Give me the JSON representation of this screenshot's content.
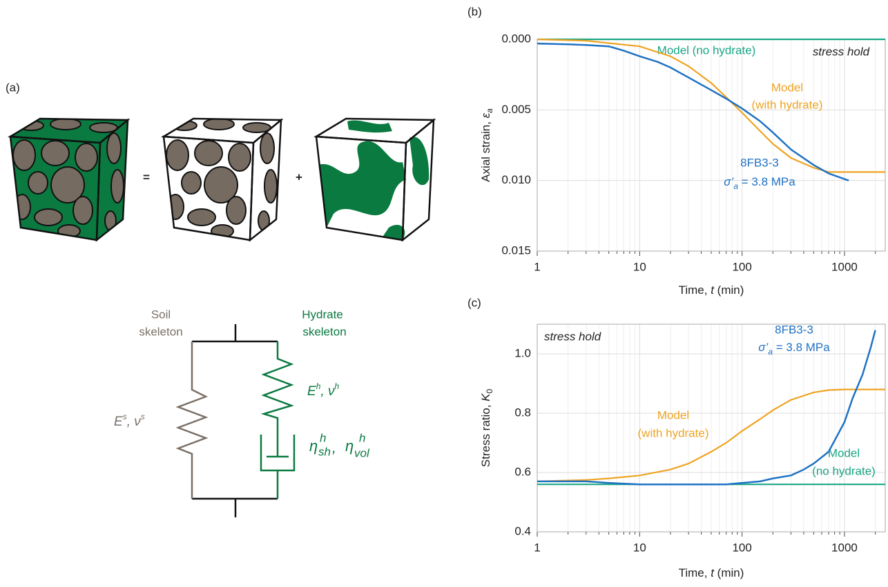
{
  "panel_labels": [
    "(a)",
    "(b)",
    "(c)"
  ],
  "diagram": {
    "equals": "=",
    "plus": "+",
    "soil_label": [
      "Soil",
      "skeleton"
    ],
    "hydrate_label": [
      "Hydrate",
      "skeleton"
    ],
    "soil_params": [
      "E",
      "s",
      ", ",
      "ν",
      "s"
    ],
    "hydrate_params": [
      "E",
      "h",
      ", ",
      "ν",
      "h"
    ],
    "viscosity_params": [
      "η",
      "h",
      "sh",
      ", ",
      "η",
      "h",
      "vol"
    ]
  },
  "chart_data": [
    {
      "type": "line",
      "x_scale": "log",
      "xlim": [
        1,
        2500
      ],
      "xticks": [
        1,
        10,
        100,
        1000
      ],
      "ylim": [
        0,
        0.015
      ],
      "y_inverted": true,
      "yticks": [
        {
          "value": 0,
          "label": "0.000"
        },
        0.005,
        {
          "value": 0.01,
          "label": "0.010"
        },
        0.015
      ],
      "grid": true,
      "minor_grid": true,
      "xlabel": [
        "Time, ",
        "t",
        " (min)"
      ],
      "ylabel": [
        "Axial strain, ",
        "ε",
        "a"
      ],
      "annotation": "stress hold",
      "series": [
        {
          "label": [
            "Model (no hydrate)"
          ],
          "color": "#1aa685",
          "x": [
            1,
            2500
          ],
          "values": [
            0,
            0
          ]
        },
        {
          "label": [
            "Model",
            "(with hydrate)"
          ],
          "color": "#eea320",
          "x": [
            1,
            3,
            10,
            20,
            30,
            50,
            70,
            100,
            150,
            200,
            300,
            500,
            700,
            1000,
            2500
          ],
          "values": [
            0,
            0.0001,
            0.0005,
            0.0012,
            0.0019,
            0.0031,
            0.0041,
            0.0052,
            0.0065,
            0.0074,
            0.0084,
            0.0091,
            0.0094,
            0.0094,
            0.0094
          ]
        },
        {
          "label": [
            "8FB3-3",
            [
              "σ’",
              "a",
              " = 3.8 MPa"
            ]
          ],
          "color": "#1f72c4",
          "x": [
            1,
            2,
            3,
            5,
            7,
            10,
            15,
            20,
            30,
            50,
            70,
            100,
            150,
            200,
            300,
            500,
            700,
            1000,
            1100
          ],
          "values": [
            0.0003,
            0.00035,
            0.0004,
            0.0005,
            0.0008,
            0.0012,
            0.0016,
            0.002,
            0.0027,
            0.0036,
            0.0042,
            0.0049,
            0.0058,
            0.0066,
            0.0078,
            0.0089,
            0.0095,
            0.0099,
            0.01
          ]
        }
      ]
    },
    {
      "type": "line",
      "x_scale": "log",
      "xlim": [
        1,
        2500
      ],
      "xticks": [
        1,
        10,
        100,
        1000
      ],
      "ylim": [
        0.4,
        1.1
      ],
      "yticks": [
        0.4,
        0.6,
        0.8,
        {
          "value": 1,
          "label": "1.0"
        }
      ],
      "grid": true,
      "minor_grid": true,
      "xlabel": [
        "Time, ",
        "t",
        " (min)"
      ],
      "ylabel": [
        "Stress ratio, ",
        "K",
        "0"
      ],
      "annotation": "stress hold",
      "series": [
        {
          "label": [
            "Model",
            "(no hydrate)"
          ],
          "color": "#1aa685",
          "x": [
            1,
            2500
          ],
          "values": [
            0.56,
            0.56
          ]
        },
        {
          "label": [
            "Model",
            "(with hydrate)"
          ],
          "color": "#eea320",
          "x": [
            1,
            3,
            5,
            10,
            20,
            30,
            50,
            70,
            100,
            150,
            200,
            300,
            500,
            700,
            1000,
            2500
          ],
          "values": [
            0.57,
            0.575,
            0.58,
            0.59,
            0.61,
            0.63,
            0.67,
            0.7,
            0.74,
            0.78,
            0.81,
            0.845,
            0.87,
            0.878,
            0.88,
            0.88
          ]
        },
        {
          "label": [
            "8FB3-3",
            [
              "σ’",
              "a",
              " = 3.8 MPa"
            ]
          ],
          "color": "#1f72c4",
          "x": [
            1,
            3,
            5,
            10,
            20,
            30,
            50,
            70,
            100,
            150,
            200,
            300,
            400,
            500,
            700,
            1000,
            1200,
            1500,
            1800,
            2000
          ],
          "values": [
            0.57,
            0.57,
            0.565,
            0.56,
            0.56,
            0.56,
            0.56,
            0.56,
            0.565,
            0.57,
            0.58,
            0.59,
            0.61,
            0.63,
            0.67,
            0.77,
            0.85,
            0.93,
            1.02,
            1.08
          ]
        }
      ]
    }
  ]
}
